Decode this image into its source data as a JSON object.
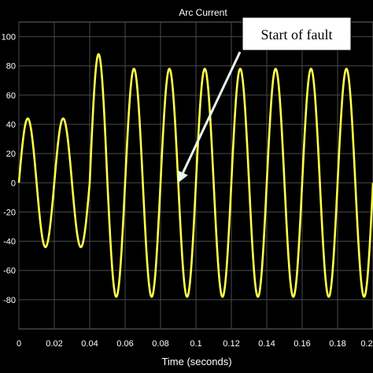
{
  "chart_data": {
    "type": "line",
    "title": "Arc Current",
    "xlabel": "Time (seconds)",
    "ylabel": "",
    "xlim": [
      0,
      0.2
    ],
    "ylim": [
      -100,
      110
    ],
    "xticks": [
      "0",
      "0.02",
      "0.04",
      "0.06",
      "0.08",
      "0.1",
      "0.12",
      "0.14",
      "0.16",
      "0.18",
      "0.2"
    ],
    "yticks": [
      "100",
      "80",
      "60",
      "40",
      "20",
      "0",
      "-20",
      "-40",
      "-60",
      "-80"
    ],
    "grid": true,
    "series": [
      {
        "frequency_hz": 50,
        "segments": [
          {
            "x_start": 0.0,
            "x_end": 0.04,
            "amplitude": 44
          },
          {
            "x_start": 0.04,
            "x_end": 0.05,
            "amplitude": 88
          },
          {
            "x_start": 0.05,
            "x_end": 0.2,
            "amplitude": 78
          }
        ]
      }
    ],
    "annotation": {
      "text": "Start of fault",
      "x": 0.09,
      "y": 0
    }
  },
  "colors": {
    "background": "#000000",
    "plot_background": "#000000",
    "grid": "#4a4a4a",
    "line": "#ffff4a",
    "text": "#ffffff",
    "annotation_box": "#ffffff",
    "annotation_text": "#000000",
    "arrow": "#e8f8ec"
  }
}
